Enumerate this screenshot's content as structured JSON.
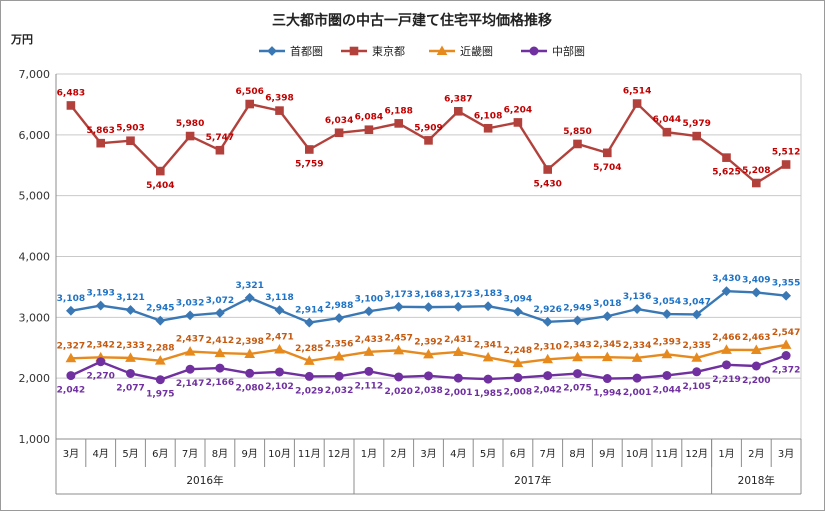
{
  "chart_data": {
    "type": "line",
    "title": "三大都市圏の中古一戸建て住宅平均価格推移",
    "unit_label": "万円",
    "ylim": [
      1000,
      7000
    ],
    "yticks": [
      "1,000",
      "2,000",
      "3,000",
      "4,000",
      "5,000",
      "6,000",
      "7,000"
    ],
    "grid": true,
    "legend_position": "top",
    "categories": [
      "3月",
      "4月",
      "5月",
      "6月",
      "7月",
      "8月",
      "9月",
      "10月",
      "11月",
      "12月",
      "1月",
      "2月",
      "3月",
      "4月",
      "5月",
      "6月",
      "7月",
      "8月",
      "9月",
      "10月",
      "11月",
      "12月",
      "1月",
      "2月",
      "3月"
    ],
    "year_groups": [
      {
        "label": "2016年",
        "count": 10
      },
      {
        "label": "2017年",
        "count": 12
      },
      {
        "label": "2018年",
        "count": 3
      }
    ],
    "series": [
      {
        "name": "首都圏",
        "color": "#3a78b5",
        "marker": "diamond",
        "values": [
          3108,
          3193,
          3121,
          2945,
          3032,
          3072,
          3321,
          3118,
          2914,
          2988,
          3100,
          3173,
          3168,
          3173,
          3183,
          3094,
          2926,
          2949,
          3018,
          3136,
          3054,
          3047,
          3430,
          3409,
          3355
        ],
        "labels": [
          "3,108",
          "3,193",
          "3,121",
          "2,945",
          "3,032",
          "3,072",
          "3,321",
          "3,118",
          "2,914",
          "2,988",
          "3,100",
          "3,173",
          "3,168",
          "3,173",
          "3,183",
          "3,094",
          "2,926",
          "2,949",
          "3,018",
          "3,136",
          "3,054",
          "3,047",
          "3,430",
          "3,409",
          "3,355"
        ],
        "label_color": "#1f73c6"
      },
      {
        "name": "東京都",
        "color": "#b2413c",
        "marker": "square",
        "values": [
          6483,
          5863,
          5903,
          5404,
          5980,
          5747,
          6506,
          6398,
          5759,
          6034,
          6084,
          6188,
          5909,
          6387,
          6108,
          6204,
          5430,
          5850,
          5704,
          6514,
          6044,
          5979,
          5625,
          5208,
          5512
        ],
        "labels": [
          "6,483",
          "5,863",
          "5,903",
          "5,404",
          "5,980",
          "5,747",
          "6,506",
          "6,398",
          "5,759",
          "6,034",
          "6,084",
          "6,188",
          "5,909",
          "6,387",
          "6,108",
          "6,204",
          "5,430",
          "5,850",
          "5,704",
          "6,514",
          "6,044",
          "5,979",
          "5,625",
          "5,208",
          "5,512"
        ],
        "label_color": "#c00000"
      },
      {
        "name": "近畿圏",
        "color": "#e78a1e",
        "marker": "triangle",
        "values": [
          2327,
          2342,
          2333,
          2288,
          2437,
          2412,
          2398,
          2471,
          2285,
          2356,
          2433,
          2457,
          2392,
          2431,
          2341,
          2248,
          2310,
          2343,
          2345,
          2334,
          2393,
          2335,
          2466,
          2463,
          2547
        ],
        "labels": [
          "2,327",
          "2,342",
          "2,333",
          "2,288",
          "2,437",
          "2,412",
          "2,398",
          "2,471",
          "2,285",
          "2,356",
          "2,433",
          "2,457",
          "2,392",
          "2,431",
          "2,341",
          "2,248",
          "2,310",
          "2,343",
          "2,345",
          "2,334",
          "2,393",
          "2,335",
          "2,466",
          "2,463",
          "2,547"
        ],
        "label_color": "#c55a11"
      },
      {
        "name": "中部圏",
        "color": "#7030a0",
        "marker": "circle",
        "values": [
          2042,
          2270,
          2077,
          1975,
          2147,
          2166,
          2080,
          2102,
          2029,
          2032,
          2112,
          2020,
          2038,
          2001,
          1985,
          2008,
          2042,
          2075,
          1994,
          2001,
          2044,
          2105,
          2219,
          2200,
          2372
        ],
        "labels": [
          "2,042",
          "2,270",
          "2,077",
          "1,975",
          "2,147",
          "2,166",
          "2,080",
          "2,102",
          "2,029",
          "2,032",
          "2,112",
          "2,020",
          "2,038",
          "2,001",
          "1,985",
          "2,008",
          "2,042",
          "2,075",
          "1,994",
          "2,001",
          "2,044",
          "2,105",
          "2,219",
          "2,200",
          "2,372"
        ],
        "label_color": "#7030a0"
      }
    ]
  }
}
